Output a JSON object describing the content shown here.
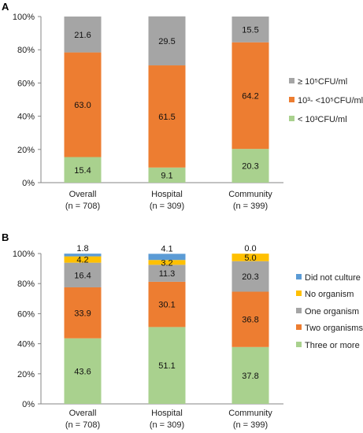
{
  "chart_data": [
    {
      "type": "bar",
      "stacked": true,
      "panel_label": "A",
      "categories": [
        "Overall",
        "Hospital",
        "Community"
      ],
      "category_sublabels": [
        "(n = 708)",
        "(n = 309)",
        "(n = 399)"
      ],
      "ylim": [
        0,
        100
      ],
      "yticks": [
        0,
        20,
        40,
        60,
        80,
        100
      ],
      "y_tick_suffix": "%",
      "legend_position": "right",
      "series": [
        {
          "name": "< 10³CFU/ml",
          "values": [
            15.4,
            9.1,
            20.3
          ],
          "color": "#a9d18e"
        },
        {
          "name": "10³- <10⁵CFU/ml",
          "values": [
            63.0,
            61.5,
            64.2
          ],
          "color": "#ed7d31"
        },
        {
          "name": "≥ 10⁵CFU/ml",
          "values": [
            21.6,
            29.5,
            15.5
          ],
          "color": "#a5a5a5"
        }
      ]
    },
    {
      "type": "bar",
      "stacked": true,
      "panel_label": "B",
      "categories": [
        "Overall",
        "Hospital",
        "Community"
      ],
      "category_sublabels": [
        "(n = 708)",
        "(n = 309)",
        "(n = 399)"
      ],
      "ylim": [
        0,
        100
      ],
      "yticks": [
        0,
        20,
        40,
        60,
        80,
        100
      ],
      "y_tick_suffix": "%",
      "legend_position": "right",
      "series": [
        {
          "name": "Three or more",
          "values": [
            43.6,
            51.1,
            37.8
          ],
          "color": "#a9d18e"
        },
        {
          "name": "Two organisms",
          "values": [
            33.9,
            30.1,
            36.8
          ],
          "color": "#ed7d31"
        },
        {
          "name": "One organism",
          "values": [
            16.4,
            11.3,
            20.3
          ],
          "color": "#a5a5a5"
        },
        {
          "name": "No organism",
          "values": [
            4.2,
            3.2,
            5.0
          ],
          "color": "#ffc000"
        },
        {
          "name": "Did not culture",
          "values": [
            1.8,
            4.1,
            0.0
          ],
          "color": "#5b9bd5"
        }
      ]
    }
  ]
}
